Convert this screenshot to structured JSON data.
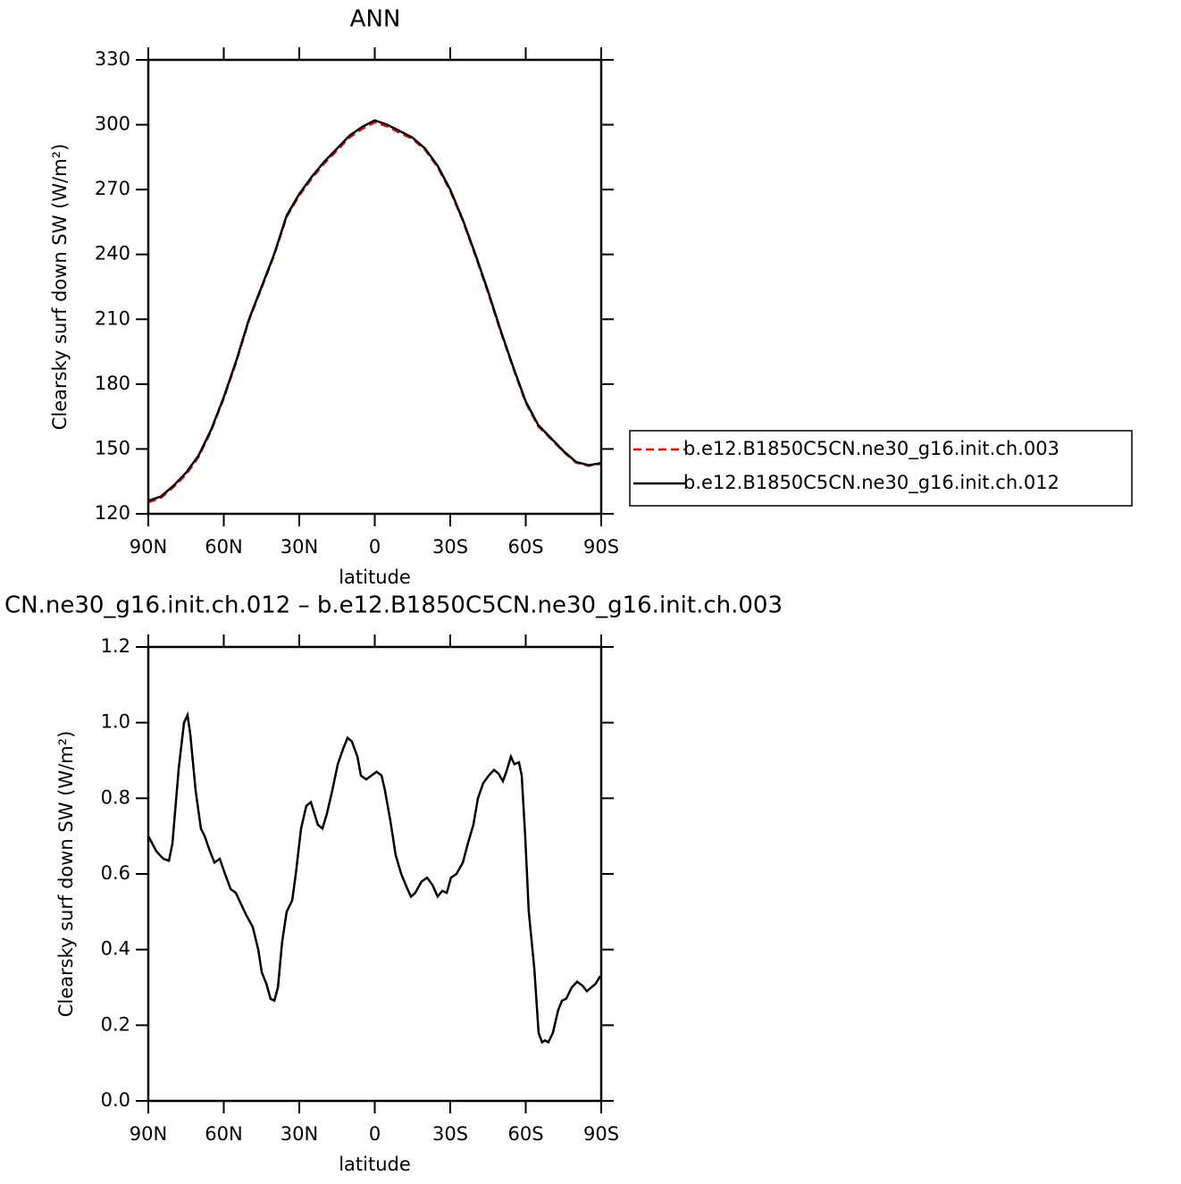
{
  "chart_data": [
    {
      "type": "line",
      "title": "ANN",
      "xlabel": "latitude",
      "ylabel": "Clearsky surf down SW (W/m²)",
      "x": [
        90,
        85,
        80,
        75,
        70,
        65,
        60,
        55,
        50,
        45,
        40,
        35,
        30,
        25,
        20,
        15,
        10,
        5,
        0,
        -5,
        -10,
        -15,
        -20,
        -25,
        -30,
        -35,
        -40,
        -45,
        -50,
        -55,
        -60,
        -65,
        -70,
        -75,
        -80,
        -85,
        -90
      ],
      "series": [
        {
          "name": "b.e12.B1850C5CN.ne30_g16.init.ch.003",
          "color": "#ff0000",
          "dash": true,
          "values": [
            125.3,
            127.4,
            132.4,
            138.2,
            146.3,
            158.4,
            173.4,
            190.4,
            209.5,
            224.5,
            239.5,
            257.4,
            267.3,
            275.2,
            282.2,
            288.1,
            294.1,
            298.1,
            301.1,
            299.2,
            296.2,
            293.4,
            288.4,
            280.4,
            269.4,
            255.5,
            239.4,
            222.4,
            204.4,
            187.5,
            171.4,
            160.4,
            154.7,
            148.7,
            143.7,
            142.2,
            143.2
          ]
        },
        {
          "name": "b.e12.B1850C5CN.ne30_g16.init.ch.012",
          "color": "#000000",
          "dash": false,
          "values": [
            126,
            128,
            133,
            139,
            147,
            159,
            174,
            191,
            210,
            225,
            240,
            258,
            268,
            276,
            283,
            289,
            295,
            299,
            302,
            300,
            297,
            294,
            289,
            281,
            270,
            256,
            240,
            223,
            205,
            188,
            172,
            161,
            155,
            149,
            144,
            142.5,
            143.5
          ]
        }
      ],
      "xlim": [
        90,
        -90
      ],
      "xticks": [
        {
          "value": 90,
          "label": "90N"
        },
        {
          "value": 60,
          "label": "60N"
        },
        {
          "value": 30,
          "label": "30N"
        },
        0,
        {
          "value": -30,
          "label": "30S"
        },
        {
          "value": -60,
          "label": "60S"
        },
        {
          "value": -90,
          "label": "90S"
        }
      ],
      "ylim": [
        120,
        330
      ],
      "yticks": [
        120,
        150,
        180,
        210,
        240,
        270,
        300,
        330
      ],
      "legend": "right"
    },
    {
      "type": "line",
      "title": "CN.ne30_g16.init.ch.012 – b.e12.B1850C5CN.ne30_g16.init.ch.003",
      "xlabel": "latitude",
      "ylabel": "Clearsky surf down SW (W/m²)",
      "x": [
        90,
        86.8,
        84,
        81.8,
        80.4,
        77.9,
        75.8,
        74.4,
        73.3,
        71.2,
        69.1,
        67.6,
        65.5,
        63.7,
        61.6,
        59.5,
        57.3,
        55.2,
        53.1,
        51,
        48.5,
        46.3,
        44.9,
        43.1,
        41.4,
        39.9,
        38.5,
        36.8,
        35,
        32.8,
        31.4,
        29.3,
        27.2,
        25.4,
        24,
        22.6,
        20.8,
        19,
        16.9,
        14.7,
        12.6,
        10.8,
        9.1,
        6.9,
        5.5,
        3.4,
        1.3,
        -0.7,
        -2.7,
        -4.1,
        -6.2,
        -8.3,
        -10.5,
        -13,
        -14.4,
        -16.1,
        -18.6,
        -20.8,
        -23,
        -25,
        -26.8,
        -28.6,
        -30.3,
        -32.5,
        -35,
        -37,
        -39.2,
        -41,
        -43.1,
        -45.3,
        -47.4,
        -49.2,
        -50.9,
        -52.3,
        -54.1,
        -55.5,
        -57.3,
        -58.4,
        -59.8,
        -61.2,
        -63.4,
        -65.1,
        -66.5,
        -67.6,
        -69,
        -70.8,
        -72.9,
        -74.4,
        -76.1,
        -78.3,
        -80.4,
        -82.5,
        -84.3,
        -86.1,
        -87.8,
        -89.6
      ],
      "series": [
        {
          "color": "#000000",
          "dash": false,
          "values": [
            0.7,
            0.66,
            0.64,
            0.635,
            0.68,
            0.88,
            1.0,
            1.02,
            0.97,
            0.82,
            0.72,
            0.7,
            0.66,
            0.63,
            0.64,
            0.6,
            0.56,
            0.55,
            0.52,
            0.49,
            0.46,
            0.4,
            0.34,
            0.31,
            0.27,
            0.265,
            0.3,
            0.42,
            0.5,
            0.53,
            0.6,
            0.72,
            0.78,
            0.79,
            0.76,
            0.73,
            0.72,
            0.76,
            0.82,
            0.89,
            0.93,
            0.96,
            0.95,
            0.91,
            0.86,
            0.85,
            0.86,
            0.87,
            0.86,
            0.82,
            0.74,
            0.65,
            0.6,
            0.56,
            0.54,
            0.55,
            0.58,
            0.59,
            0.57,
            0.54,
            0.555,
            0.55,
            0.59,
            0.6,
            0.63,
            0.68,
            0.73,
            0.8,
            0.84,
            0.86,
            0.875,
            0.865,
            0.845,
            0.87,
            0.91,
            0.89,
            0.895,
            0.86,
            0.7,
            0.5,
            0.35,
            0.18,
            0.155,
            0.16,
            0.155,
            0.18,
            0.24,
            0.265,
            0.27,
            0.3,
            0.315,
            0.305,
            0.29,
            0.3,
            0.31,
            0.33
          ]
        }
      ],
      "xlim": [
        90,
        -90
      ],
      "xticks": [
        {
          "value": 90,
          "label": "90N"
        },
        {
          "value": 60,
          "label": "60N"
        },
        {
          "value": 30,
          "label": "30N"
        },
        0,
        {
          "value": -30,
          "label": "30S"
        },
        {
          "value": -60,
          "label": "60S"
        },
        {
          "value": -90,
          "label": "90S"
        }
      ],
      "ylim": [
        0,
        1.2
      ],
      "yticks": [
        {
          "value": 0,
          "label": "0.0"
        },
        0.2,
        0.4,
        0.6,
        0.8,
        {
          "value": 1,
          "label": "1.0"
        },
        1.2
      ]
    }
  ]
}
